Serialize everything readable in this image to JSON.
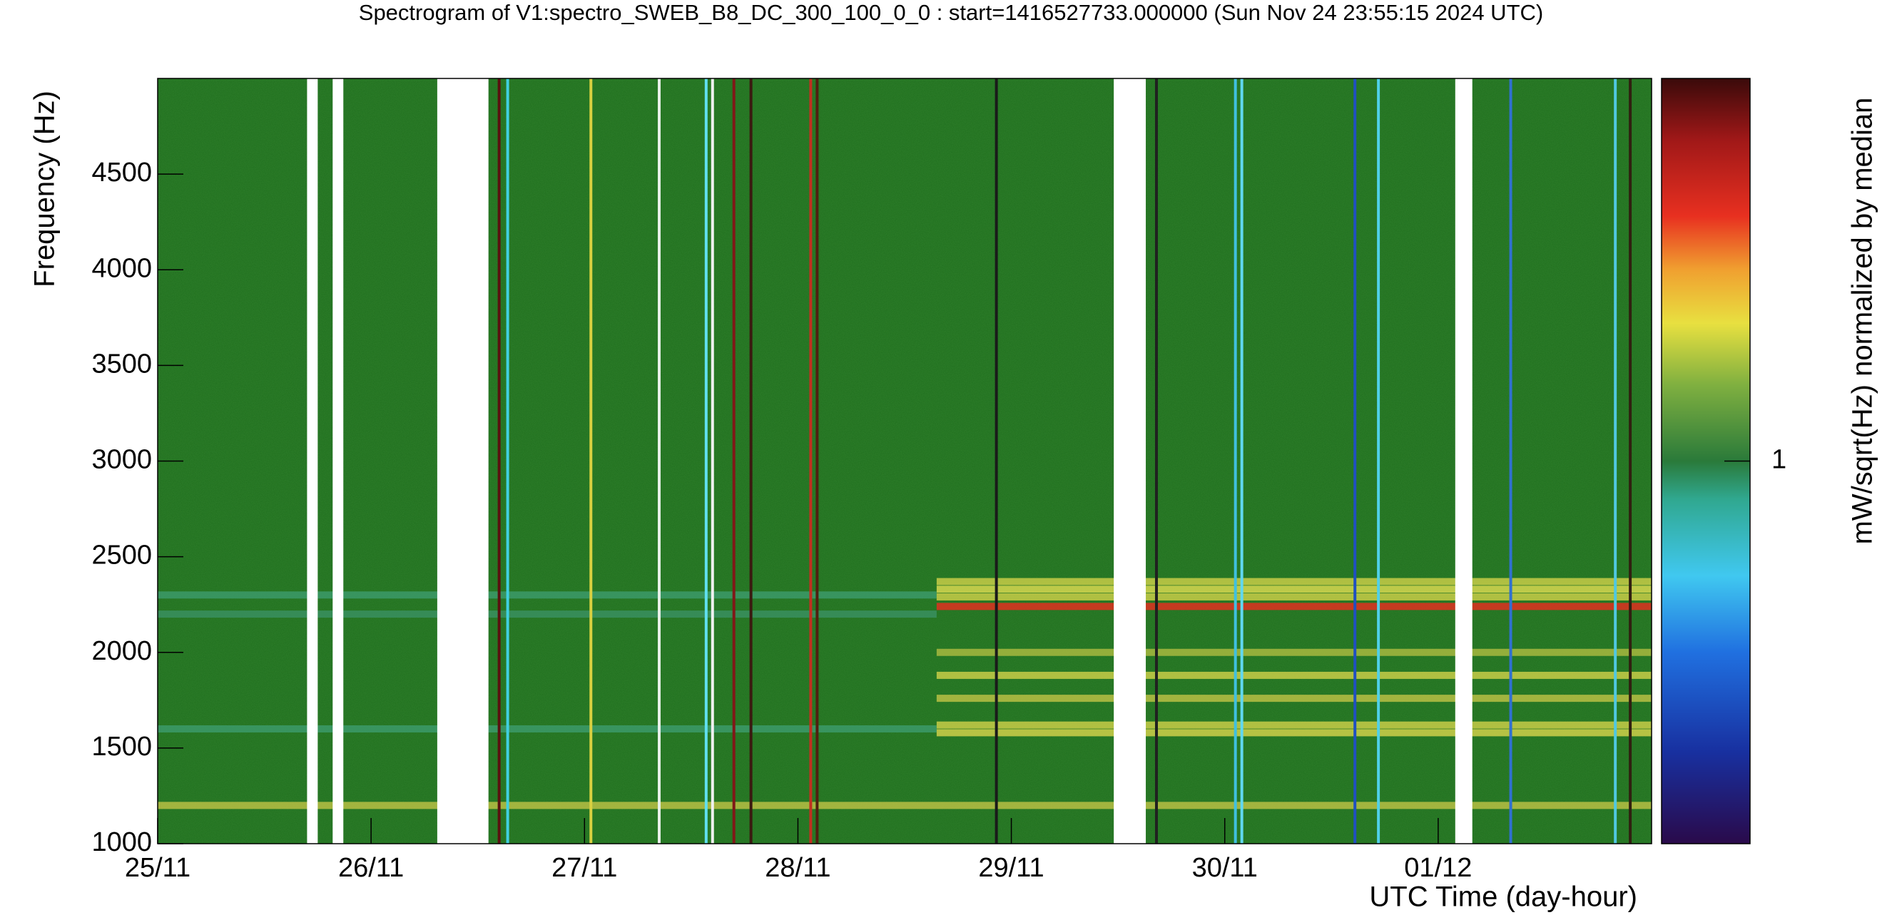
{
  "chart_data": {
    "type": "spectrogram",
    "title": "Spectrogram of V1:spectro_SWEB_B8_DC_300_100_0_0 : start=1416527733.000000 (Sun Nov 24 23:55:15 2024 UTC)",
    "y_label": "Frequency (Hz)",
    "x_label": "UTC Time (day-hour)",
    "colorbar_label": "mW/sqrt(Hz) normalized by median",
    "xlim": [
      0,
      7
    ],
    "xticks": [
      {
        "value": 0,
        "label": "25/11"
      },
      {
        "value": 1,
        "label": "26/11"
      },
      {
        "value": 2,
        "label": "27/11"
      },
      {
        "value": 3,
        "label": "28/11"
      },
      {
        "value": 4,
        "label": "29/11"
      },
      {
        "value": 5,
        "label": "30/11"
      },
      {
        "value": 6,
        "label": "01/12"
      }
    ],
    "ylim": [
      1000,
      5000
    ],
    "yticks": [
      1000,
      1500,
      2000,
      2500,
      3000,
      3500,
      4000,
      4500
    ],
    "clim": [
      0.1,
      10
    ],
    "colorbar_log": true,
    "colorbar_ticks": [
      1
    ],
    "background_color": "#2f7f2c",
    "gaps": [
      [
        0.7,
        0.75
      ],
      [
        0.82,
        0.87
      ],
      [
        1.31,
        1.55
      ],
      [
        4.48,
        4.63
      ],
      [
        6.08,
        6.16
      ]
    ],
    "lines": [
      {
        "x": 1.6,
        "color": "#5a1010"
      },
      {
        "x": 1.64,
        "color": "#40d0e0"
      },
      {
        "x": 2.03,
        "color": "#d8d040"
      },
      {
        "x": 2.35,
        "color": "#e8f0e8"
      },
      {
        "x": 2.57,
        "color": "#60e0f0"
      },
      {
        "x": 2.6,
        "color": "#f0f0f0"
      },
      {
        "x": 2.7,
        "color": "#801818"
      },
      {
        "x": 2.78,
        "color": "#3a1a10"
      },
      {
        "x": 3.06,
        "color": "#c03020"
      },
      {
        "x": 3.09,
        "color": "#502010"
      },
      {
        "x": 3.93,
        "color": "#1a1a1a"
      },
      {
        "x": 4.68,
        "color": "#202020"
      },
      {
        "x": 5.05,
        "color": "#40c0e0"
      },
      {
        "x": 5.08,
        "color": "#60d8f0"
      },
      {
        "x": 5.61,
        "color": "#2050c0"
      },
      {
        "x": 5.72,
        "color": "#50d0e8"
      },
      {
        "x": 6.34,
        "color": "#3070d0"
      },
      {
        "x": 6.83,
        "color": "#50c8e0"
      },
      {
        "x": 6.9,
        "color": "#302010"
      }
    ],
    "bands": [
      {
        "frequency": 2300,
        "start": 0,
        "end": 3.65,
        "color": "#3c9a6a"
      },
      {
        "frequency": 2200,
        "start": 0,
        "end": 3.65,
        "color": "#3a8f60"
      },
      {
        "frequency": 1600,
        "start": 0,
        "end": 3.65,
        "color": "#3c9a6a"
      },
      {
        "frequency": 2370,
        "start": 3.65,
        "end": 7,
        "color": "#c8cc48"
      },
      {
        "frequency": 2330,
        "start": 3.65,
        "end": 7,
        "color": "#d8d850"
      },
      {
        "frequency": 2290,
        "start": 3.65,
        "end": 7,
        "color": "#c8cc48"
      },
      {
        "frequency": 2240,
        "start": 3.65,
        "end": 7,
        "color": "#e03020"
      },
      {
        "frequency": 2000,
        "start": 3.65,
        "end": 7,
        "color": "#a8b840"
      },
      {
        "frequency": 1880,
        "start": 3.65,
        "end": 7,
        "color": "#c8cc48"
      },
      {
        "frequency": 1760,
        "start": 3.65,
        "end": 7,
        "color": "#b8c044"
      },
      {
        "frequency": 1620,
        "start": 3.65,
        "end": 7,
        "color": "#c8cc48"
      },
      {
        "frequency": 1580,
        "start": 3.65,
        "end": 7,
        "color": "#d0d04a"
      },
      {
        "frequency": 1200,
        "start": 0,
        "end": 7,
        "color": "#b8c044"
      }
    ]
  }
}
